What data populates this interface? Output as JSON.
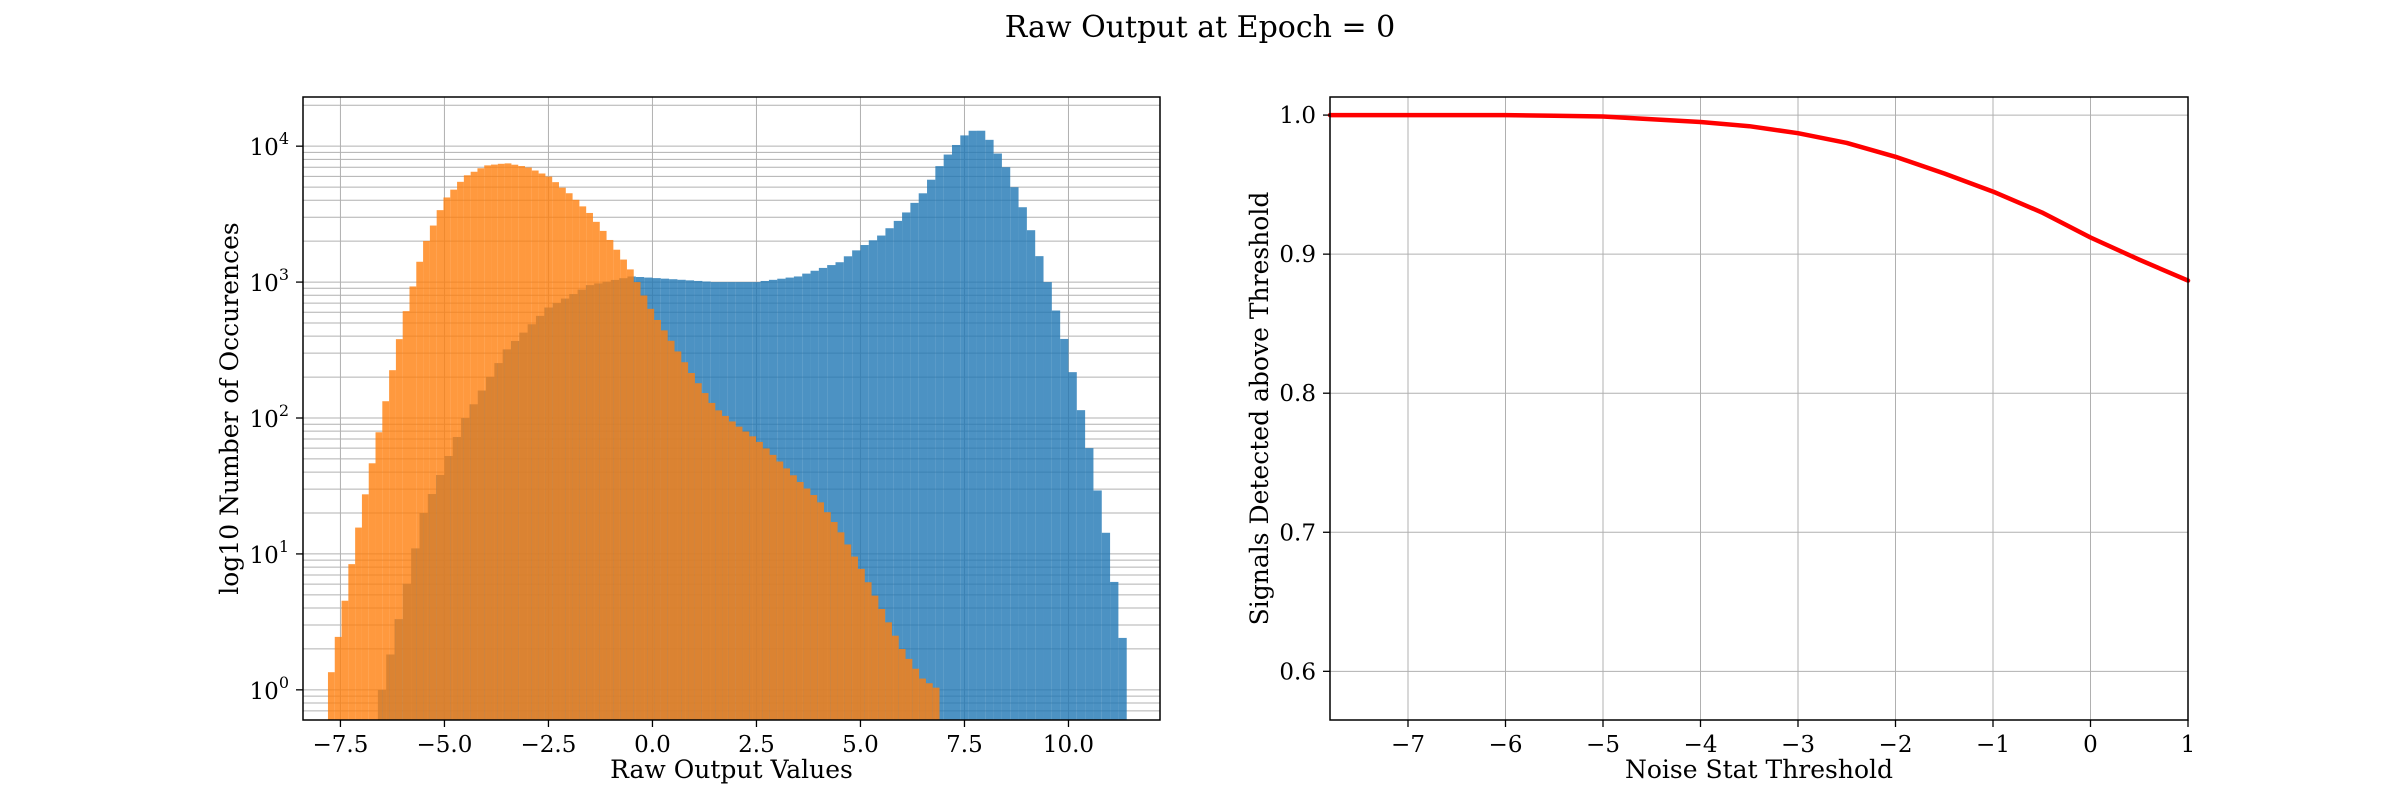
{
  "figure": {
    "suptitle": "Raw Output at Epoch = 0"
  },
  "colors": {
    "signal": "#1f77b4",
    "noise": "#ff7f0e",
    "curve": "#ff0000"
  },
  "chart_data": [
    {
      "type": "bar",
      "subtype": "histogram",
      "xlabel": "Raw Output Values",
      "ylabel": "log10 Number of Occurences",
      "xlim": [
        -8.4,
        12.2
      ],
      "ylim": [
        0.6,
        23000
      ],
      "yscale": "log",
      "grid": true,
      "xticks": [
        -7.5,
        -5.0,
        -2.5,
        0.0,
        2.5,
        5.0,
        7.5,
        10.0
      ],
      "xtick_labels": [
        "−7.5",
        "−5.0",
        "−2.5",
        "0.0",
        "2.5",
        "5.0",
        "7.5",
        "10.0"
      ],
      "yticks": [
        1,
        10,
        100,
        1000,
        10000
      ],
      "ytick_labels": [
        {
          "base": "10",
          "exp": "0"
        },
        {
          "base": "10",
          "exp": "1"
        },
        {
          "base": "10",
          "exp": "2"
        },
        {
          "base": "10",
          "exp": "3"
        },
        {
          "base": "10",
          "exp": "4"
        }
      ],
      "series": [
        {
          "color": "#1f77b4",
          "alpha": 0.8,
          "bin_range": [
            -6.6,
            11.4
          ],
          "bins_x": [
            -6.5,
            -5.5,
            -4.5,
            -3.5,
            -2.5,
            -1.5,
            -0.5,
            0.5,
            1.5,
            2.5,
            3.5,
            4.5,
            5.0,
            5.5,
            6.0,
            6.5,
            7.0,
            7.5,
            7.8,
            8.0,
            8.5,
            9.0,
            9.5,
            10.0,
            10.5,
            11.0,
            11.4
          ],
          "bins_y": [
            1,
            20,
            100,
            320,
            650,
            950,
            1100,
            1050,
            1000,
            1000,
            1100,
            1400,
            1800,
            2200,
            3000,
            4500,
            8000,
            12000,
            13500,
            12500,
            7000,
            3000,
            1000,
            300,
            60,
            10,
            1.5
          ]
        },
        {
          "color": "#ff7f0e",
          "alpha": 0.8,
          "bin_range": [
            -7.8,
            6.9
          ],
          "bins_x": [
            -7.8,
            -7.5,
            -7.0,
            -6.5,
            -6.0,
            -5.5,
            -5.0,
            -4.5,
            -4.0,
            -3.5,
            -3.0,
            -2.5,
            -2.0,
            -1.5,
            -1.0,
            -0.5,
            0.0,
            0.5,
            1.0,
            1.5,
            2.0,
            2.5,
            3.0,
            3.5,
            4.0,
            4.5,
            5.0,
            5.5,
            6.0,
            6.5,
            6.9
          ],
          "bins_y": [
            1,
            3,
            20,
            100,
            500,
            1800,
            4000,
            6000,
            7200,
            7500,
            7000,
            6000,
            4500,
            3200,
            2000,
            1200,
            600,
            350,
            200,
            120,
            90,
            70,
            50,
            35,
            25,
            15,
            8,
            4,
            2,
            1.2,
            1
          ]
        }
      ]
    },
    {
      "type": "line",
      "xlabel": "Noise Stat Threshold",
      "ylabel": "Signals Detected above Threshold",
      "xlim": [
        -7.8,
        1.0
      ],
      "ylim": [
        0.565,
        1.013
      ],
      "grid": true,
      "xticks": [
        -7,
        -6,
        -5,
        -4,
        -3,
        -2,
        -1,
        0,
        1
      ],
      "xtick_labels": [
        "−7",
        "−6",
        "−5",
        "−4",
        "−3",
        "−2",
        "−1",
        "0",
        "1"
      ],
      "yticks": [
        0.6,
        0.7,
        0.8,
        0.9,
        1.0
      ],
      "ytick_labels": [
        "0.6",
        "0.7",
        "0.8",
        "0.9",
        "1.0"
      ],
      "series": [
        {
          "color": "#ff0000",
          "x": [
            -7.8,
            -7.0,
            -6.0,
            -5.5,
            -5.0,
            -4.5,
            -4.0,
            -3.5,
            -3.0,
            -2.5,
            -2.0,
            -1.5,
            -1.0,
            -0.5,
            0.0,
            0.5,
            1.0
          ],
          "y": [
            1.0,
            1.0,
            1.0,
            0.9995,
            0.999,
            0.997,
            0.995,
            0.992,
            0.987,
            0.98,
            0.97,
            0.958,
            0.945,
            0.93,
            0.912,
            0.896,
            0.881
          ]
        }
      ]
    }
  ]
}
